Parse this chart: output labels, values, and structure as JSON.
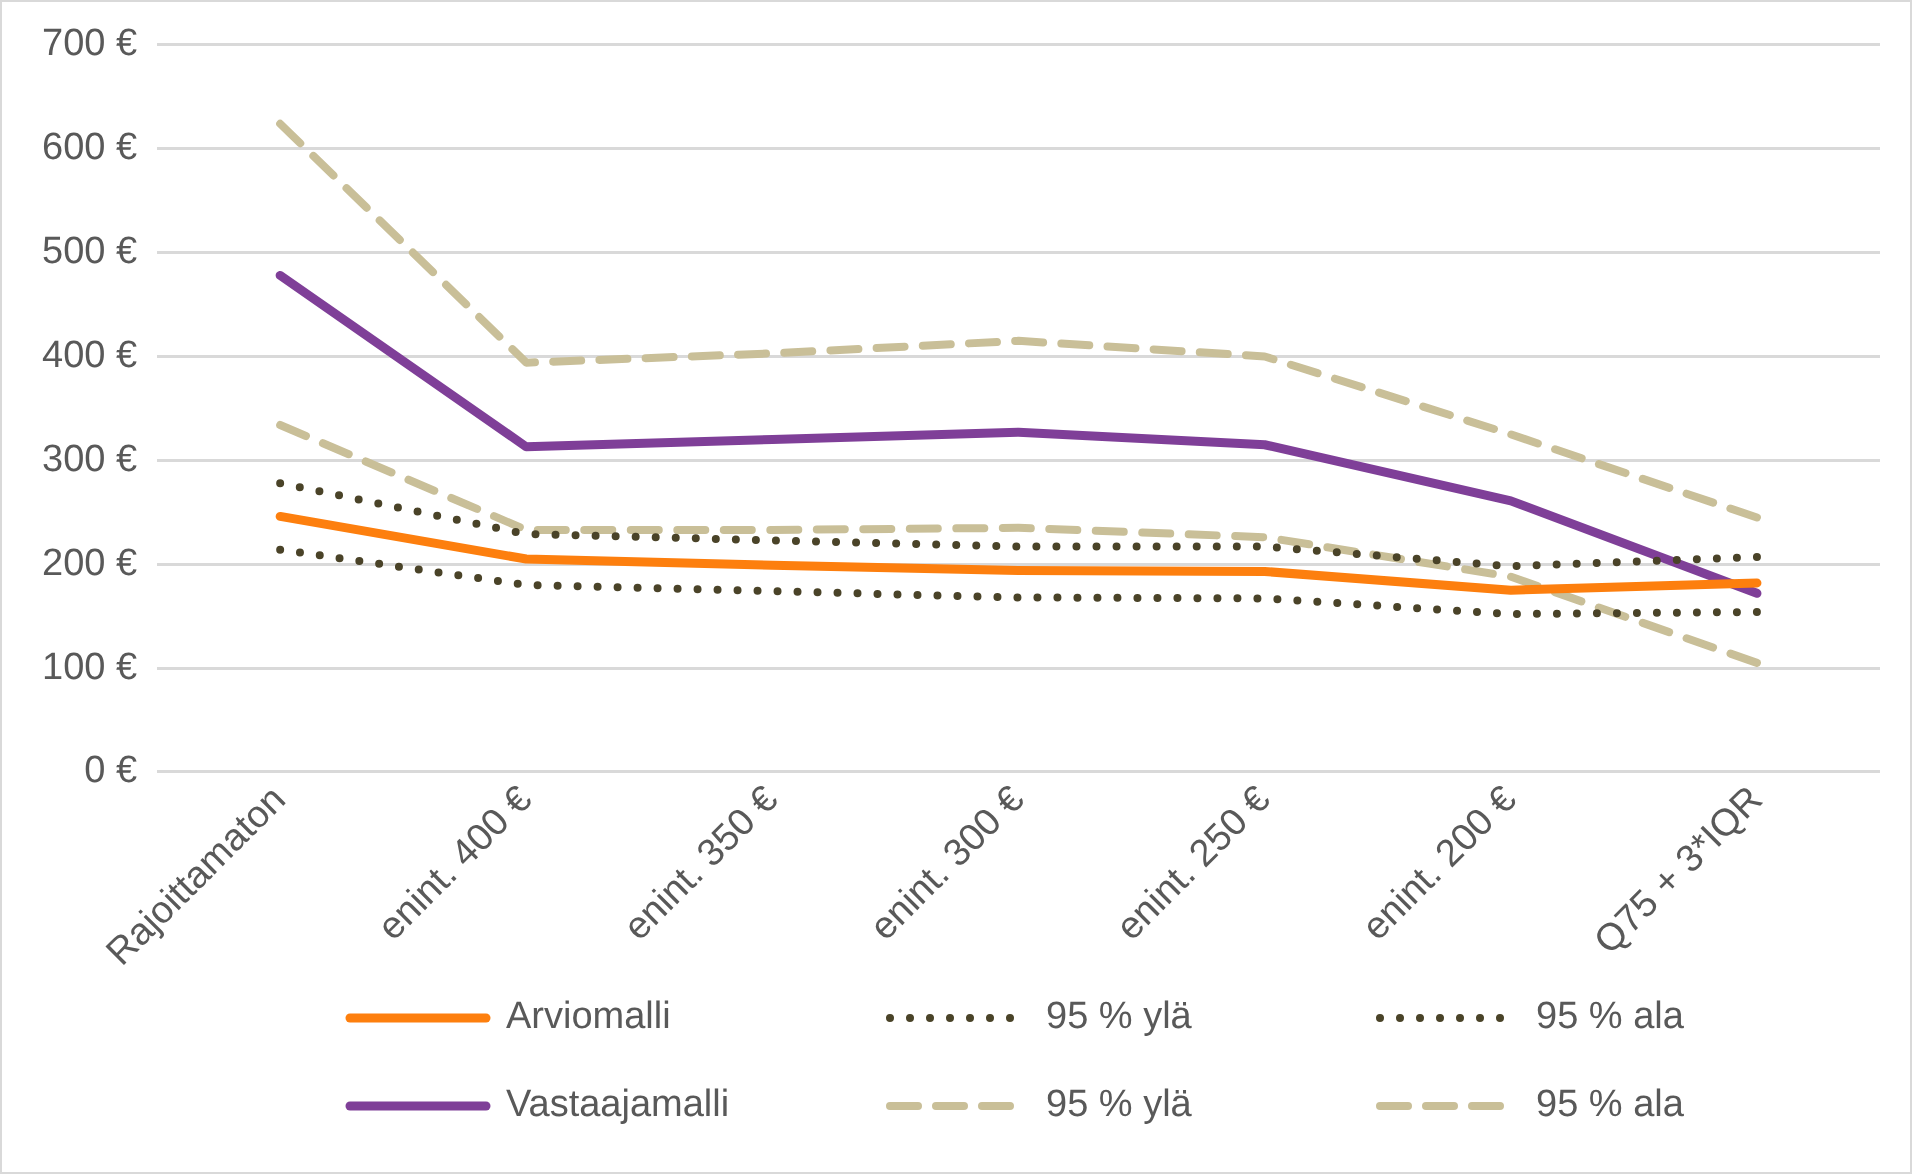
{
  "chart_data": {
    "type": "line",
    "categories": [
      "Rajoittamaton",
      "enint. 400 €",
      "enint. 350 €",
      "enint. 300 €",
      "enint. 250 €",
      "enint. 200 €",
      "Q75 + 3*IQR"
    ],
    "ylim": [
      0,
      700
    ],
    "yticks": [
      {
        "value": 0,
        "label": "0 €"
      },
      {
        "value": 100,
        "label": "100 €"
      },
      {
        "value": 200,
        "label": "200 €"
      },
      {
        "value": 300,
        "label": "300 €"
      },
      {
        "value": 400,
        "label": "400 €"
      },
      {
        "value": 500,
        "label": "500 €"
      },
      {
        "value": 600,
        "label": "600 €"
      },
      {
        "value": 700,
        "label": "700 €"
      }
    ],
    "grid": "y",
    "legend": "bottom",
    "marker": "none",
    "series": [
      {
        "name": "Arviomalli",
        "color": "#fd7f0e",
        "line_style": "solid",
        "values": [
          246,
          205,
          199,
          194,
          193,
          175,
          182
        ]
      },
      {
        "name": "95 % ylä",
        "color": "#4a4328",
        "line_style": "dotted",
        "values": [
          278,
          229,
          223,
          217,
          217,
          198,
          207
        ]
      },
      {
        "name": "95 % ala",
        "color": "#4a4328",
        "line_style": "dotted",
        "values": [
          214,
          180,
          174,
          168,
          167,
          152,
          154
        ]
      },
      {
        "name": "Vastaajamalli",
        "color": "#7f3f98",
        "line_style": "solid",
        "values": [
          478,
          313,
          320,
          327,
          315,
          261,
          172
        ]
      },
      {
        "name": "95 % ylä",
        "color": "#c9bf98",
        "line_style": "dashed",
        "values": [
          624,
          394,
          403,
          415,
          400,
          325,
          245
        ]
      },
      {
        "name": "95 % ala",
        "color": "#c9bf98",
        "line_style": "dashed",
        "values": [
          334,
          233,
          233,
          235,
          226,
          188,
          105
        ]
      }
    ]
  }
}
